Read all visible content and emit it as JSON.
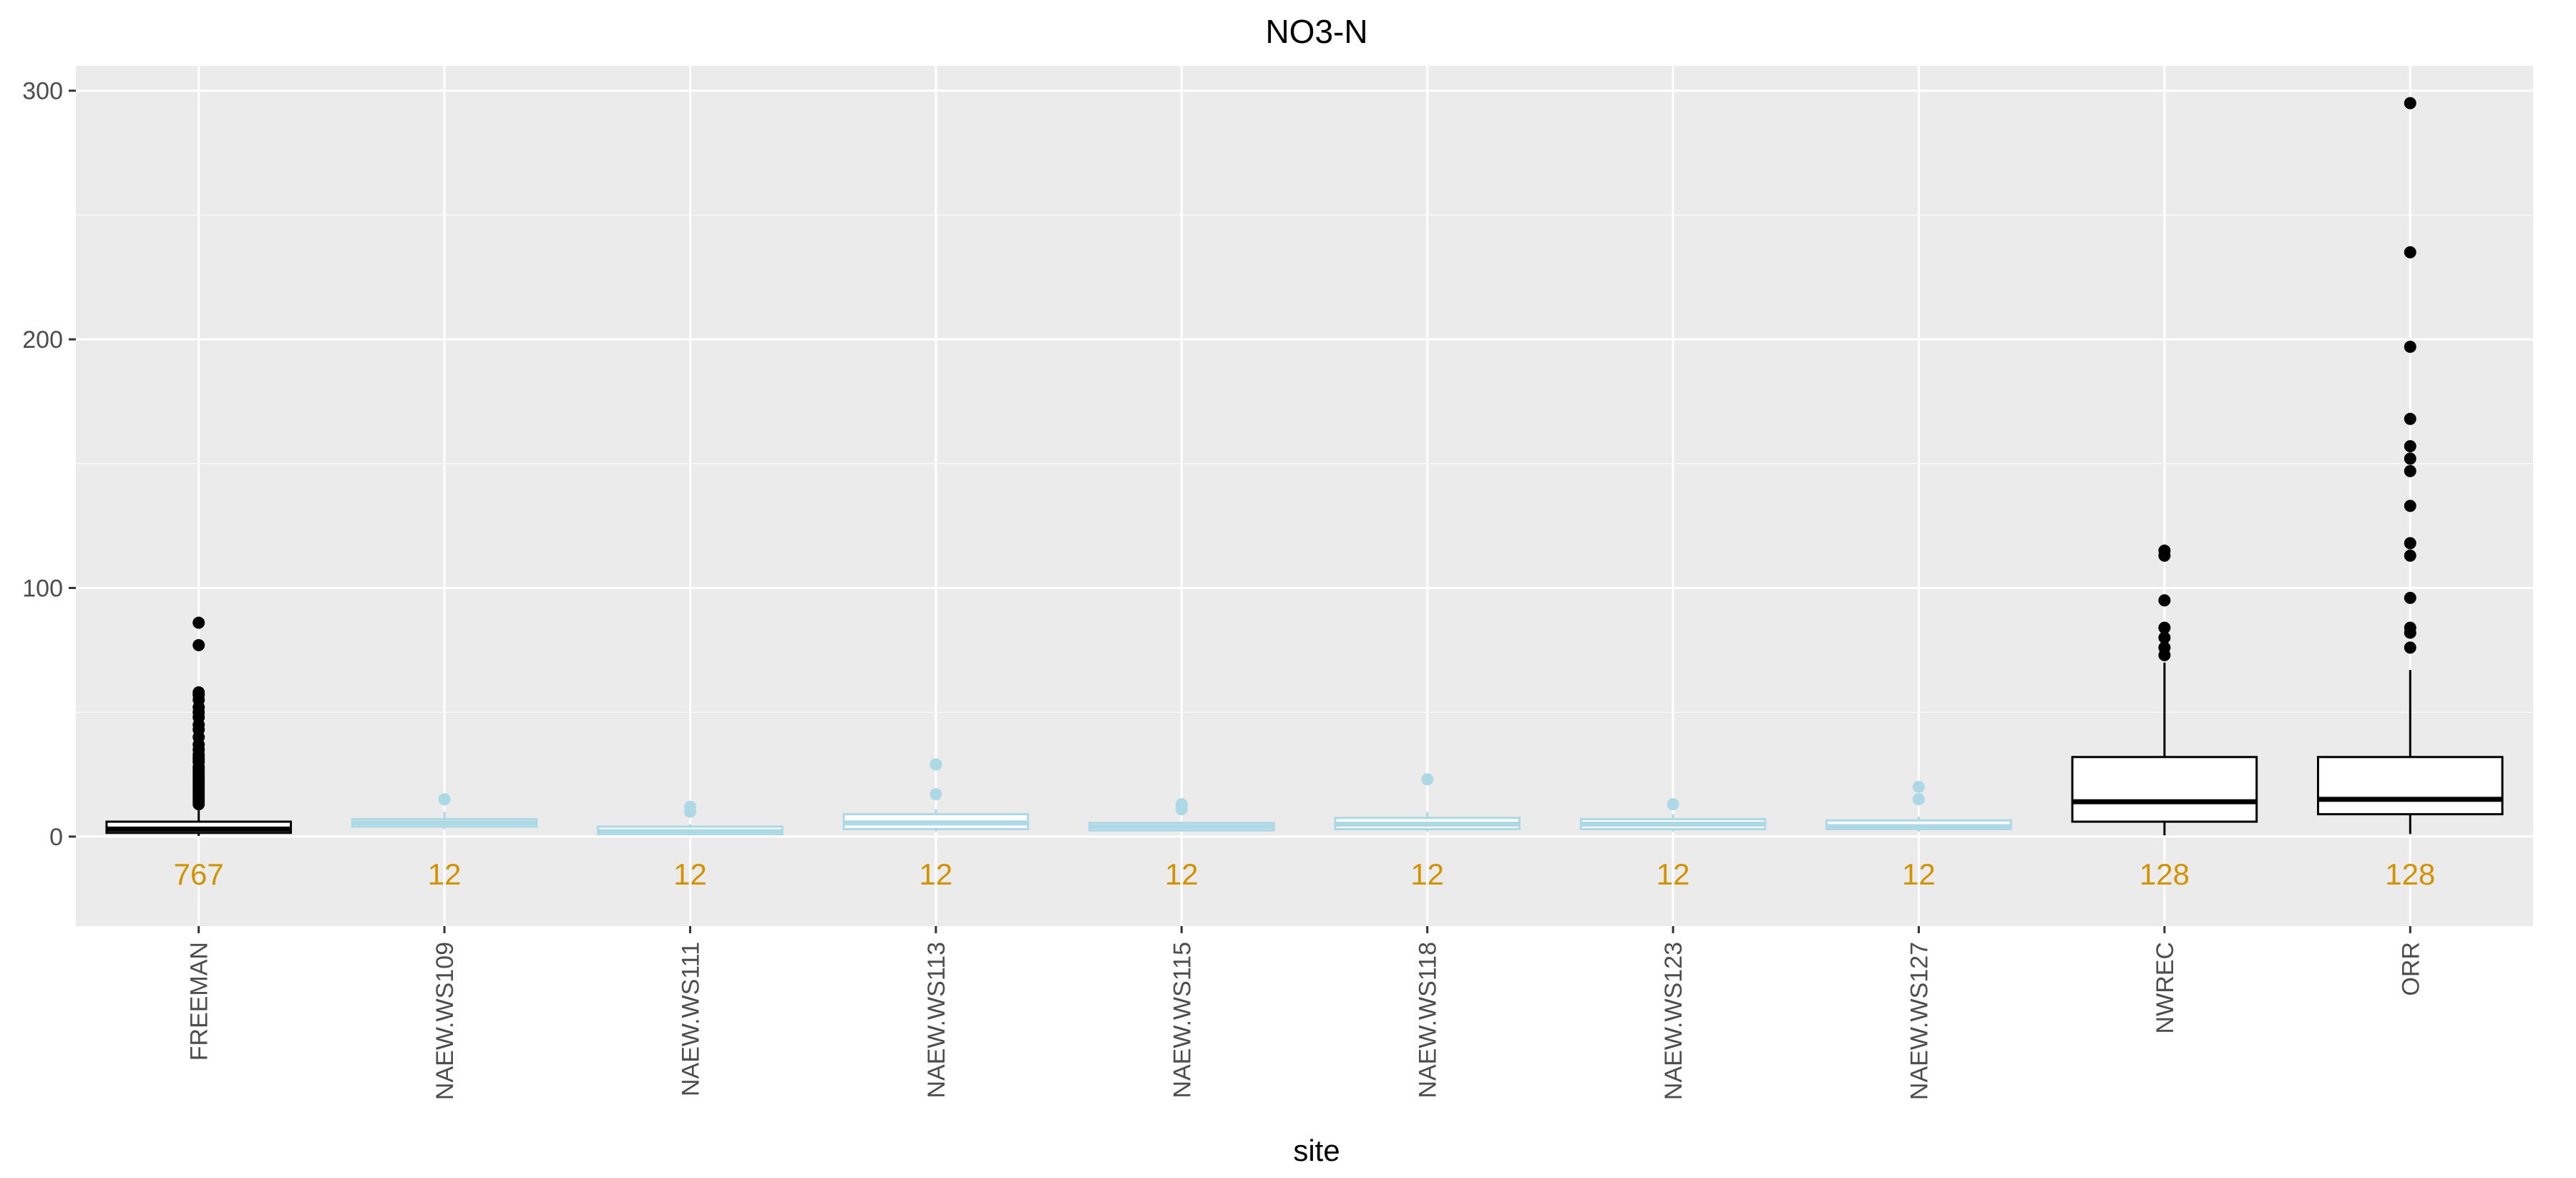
{
  "chart_data": {
    "type": "boxplot",
    "title": "NO3-N",
    "xlabel": "site",
    "ylabel": "",
    "ylim": [
      -36,
      310
    ],
    "yticks": [
      0,
      100,
      200,
      300
    ],
    "grid": true,
    "count_label_y": -15,
    "colors": {
      "panel": "#ebebeb",
      "grid_major": "#ffffff",
      "count_text": "#d39200",
      "tick_text": "#4d4d4d"
    },
    "categories": [
      "FREEMAN",
      "NAEW.WS109",
      "NAEW.WS111",
      "NAEW.WS113",
      "NAEW.WS115",
      "NAEW.WS118",
      "NAEW.WS123",
      "NAEW.WS127",
      "NWREC",
      "ORR"
    ],
    "boxes": [
      {
        "site": "FREEMAN",
        "color": "#000000",
        "fill": "#ffffff",
        "n": "767",
        "lower_whisker": 0.3,
        "q1": 1.5,
        "median": 3,
        "q3": 6,
        "upper_whisker": 12,
        "outliers": [
          13,
          14,
          15,
          16,
          17,
          18,
          19,
          20,
          21,
          22,
          23,
          24,
          25,
          26,
          27,
          28,
          30,
          31,
          32,
          33,
          35,
          37,
          40,
          43,
          45,
          48,
          50,
          52,
          55,
          57,
          58,
          77,
          86
        ]
      },
      {
        "site": "NAEW.WS109",
        "color": "#add8e6",
        "fill": "#ffffff",
        "n": "12",
        "lower_whisker": 3,
        "q1": 4,
        "median": 5.5,
        "q3": 7,
        "upper_whisker": 10,
        "outliers": [
          15
        ]
      },
      {
        "site": "NAEW.WS111",
        "color": "#add8e6",
        "fill": "#ffffff",
        "n": "12",
        "lower_whisker": 0.5,
        "q1": 1,
        "median": 2,
        "q3": 4,
        "upper_whisker": 5,
        "outliers": [
          10,
          12
        ]
      },
      {
        "site": "NAEW.WS113",
        "color": "#add8e6",
        "fill": "#ffffff",
        "n": "12",
        "lower_whisker": 2,
        "q1": 3,
        "median": 5.5,
        "q3": 9,
        "upper_whisker": 11,
        "outliers": [
          17,
          29
        ]
      },
      {
        "site": "NAEW.WS115",
        "color": "#add8e6",
        "fill": "#ffffff",
        "n": "12",
        "lower_whisker": 2,
        "q1": 2.5,
        "median": 4,
        "q3": 5.5,
        "upper_whisker": 6,
        "outliers": [
          11,
          12,
          13
        ]
      },
      {
        "site": "NAEW.WS118",
        "color": "#add8e6",
        "fill": "#ffffff",
        "n": "12",
        "lower_whisker": 2,
        "q1": 3,
        "median": 5,
        "q3": 7.5,
        "upper_whisker": 10,
        "outliers": [
          23
        ]
      },
      {
        "site": "NAEW.WS123",
        "color": "#add8e6",
        "fill": "#ffffff",
        "n": "12",
        "lower_whisker": 2,
        "q1": 3,
        "median": 5,
        "q3": 7,
        "upper_whisker": 9,
        "outliers": [
          13
        ]
      },
      {
        "site": "NAEW.WS127",
        "color": "#add8e6",
        "fill": "#ffffff",
        "n": "12",
        "lower_whisker": 2,
        "q1": 3,
        "median": 4,
        "q3": 6.5,
        "upper_whisker": 8,
        "outliers": [
          15,
          20
        ]
      },
      {
        "site": "NWREC",
        "color": "#000000",
        "fill": "#ffffff",
        "n": "128",
        "lower_whisker": 0.5,
        "q1": 6,
        "median": 14,
        "q3": 32,
        "upper_whisker": 70,
        "outliers": [
          73,
          76,
          80,
          84,
          95,
          113,
          115
        ]
      },
      {
        "site": "ORR",
        "color": "#000000",
        "fill": "#ffffff",
        "n": "128",
        "lower_whisker": 1,
        "q1": 9,
        "median": 15,
        "q3": 32,
        "upper_whisker": 67,
        "outliers": [
          76,
          82,
          84,
          96,
          113,
          118,
          133,
          147,
          152,
          157,
          168,
          197,
          235,
          295
        ]
      }
    ]
  }
}
